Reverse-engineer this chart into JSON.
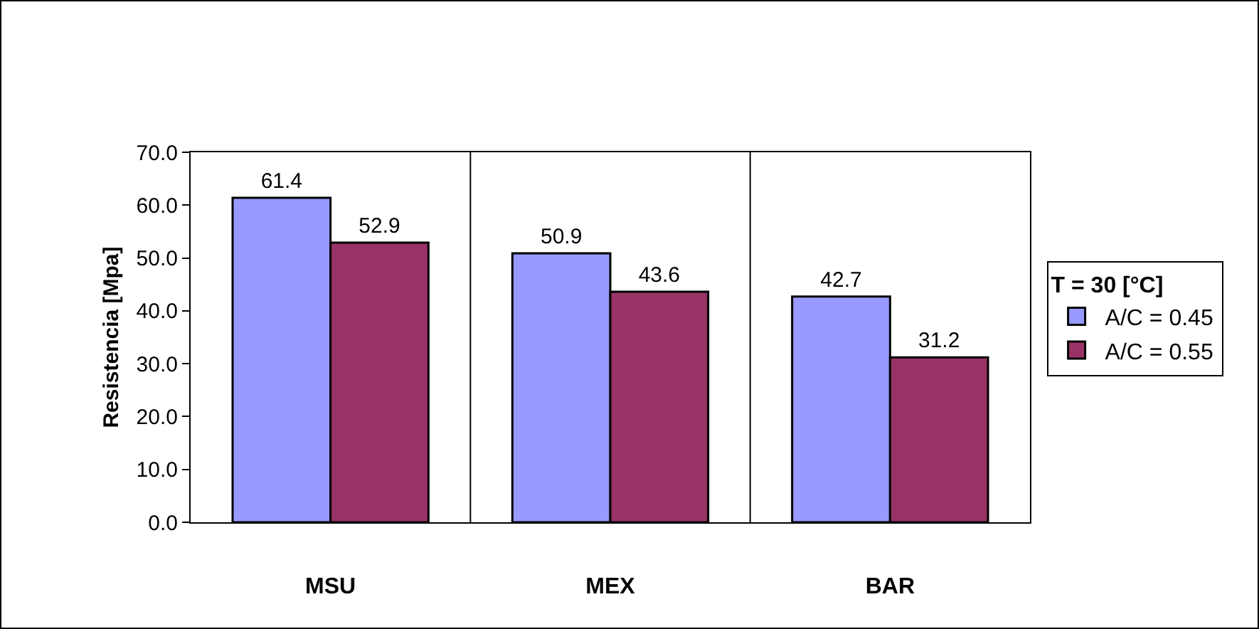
{
  "chart_data": {
    "type": "bar",
    "ylabel": "Resistencia [Mpa]",
    "legend_title": "T = 30 [°C]",
    "categories": [
      "MSU",
      "MEX",
      "BAR"
    ],
    "series": [
      {
        "name": "A/C = 0.45",
        "color": "#9999ff",
        "values": [
          61.4,
          50.9,
          42.7
        ]
      },
      {
        "name": "A/C = 0.55",
        "color": "#993366",
        "values": [
          52.9,
          43.6,
          31.2
        ]
      }
    ],
    "ylim": [
      0,
      70
    ],
    "yticks": [
      {
        "value": 0,
        "label": "0.0"
      },
      {
        "value": 10,
        "label": "10.0"
      },
      {
        "value": 20,
        "label": "20.0"
      },
      {
        "value": 30,
        "label": "30.0"
      },
      {
        "value": 40,
        "label": "40.0"
      },
      {
        "value": 50,
        "label": "50.0"
      },
      {
        "value": 60,
        "label": "60.0"
      },
      {
        "value": 70,
        "label": "70.0"
      }
    ],
    "grid": "x",
    "legend": "right",
    "data_labels": true
  }
}
